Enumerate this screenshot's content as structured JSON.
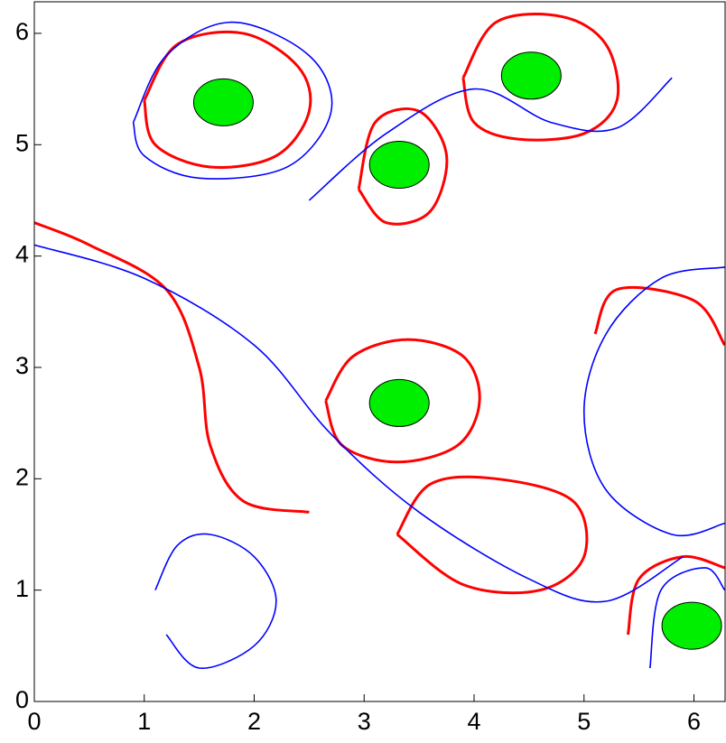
{
  "chart_data": {
    "type": "line",
    "xlim": [
      0,
      6.2832
    ],
    "ylim": [
      0,
      6.2832
    ],
    "xticks": [
      0,
      1,
      2,
      3,
      4,
      5,
      6
    ],
    "yticks": [
      0,
      1,
      2,
      3,
      4,
      5,
      6
    ],
    "series": [
      {
        "color": "#ff0000",
        "x": [
          2.65,
          2.9,
          3.4,
          3.9,
          4.05,
          3.85,
          3.3,
          2.8,
          2.65
        ],
        "values": [
          2.7,
          3.1,
          3.25,
          3.1,
          2.7,
          2.3,
          2.15,
          2.3,
          2.7
        ]
      },
      {
        "color": "#ff0000",
        "x": [
          1.0,
          1.3,
          1.9,
          2.4,
          2.5,
          2.2,
          1.6,
          1.1,
          1.0
        ],
        "values": [
          5.4,
          5.9,
          6.0,
          5.7,
          5.3,
          4.9,
          4.8,
          5.0,
          5.4
        ]
      },
      {
        "color": "#ff0000",
        "x": [
          3.9,
          4.2,
          4.8,
          5.2,
          5.3,
          5.0,
          4.4,
          4.0,
          3.9
        ],
        "values": [
          5.6,
          6.1,
          6.15,
          5.9,
          5.4,
          5.1,
          5.05,
          5.2,
          5.6
        ]
      },
      {
        "color": "#ff0000",
        "x": [
          2.95,
          3.1,
          3.5,
          3.75,
          3.6,
          3.2,
          2.95
        ],
        "values": [
          4.6,
          5.2,
          5.3,
          4.9,
          4.4,
          4.3,
          4.6
        ]
      },
      {
        "color": "#ff0000",
        "x": [
          3.3,
          3.6,
          4.2,
          4.9,
          5.0,
          4.6,
          3.9,
          3.3
        ],
        "values": [
          1.5,
          1.95,
          2.0,
          1.8,
          1.3,
          1.0,
          1.05,
          1.5
        ]
      },
      {
        "color": "#ff0000",
        "x": [
          0,
          0.5,
          1.2,
          1.5,
          1.6,
          1.9,
          2.5
        ],
        "values": [
          4.3,
          4.1,
          3.7,
          3.0,
          2.3,
          1.8,
          1.7
        ]
      },
      {
        "color": "#ff0000",
        "x": [
          5.1,
          5.3,
          6.0,
          6.28
        ],
        "values": [
          3.3,
          3.7,
          3.6,
          3.2
        ]
      },
      {
        "color": "#ff0000",
        "x": [
          5.4,
          5.5,
          5.9,
          6.28
        ],
        "values": [
          0.6,
          1.1,
          1.3,
          1.2
        ]
      },
      {
        "color": "#0000ff",
        "x": [
          6.28,
          5.7,
          5.2,
          5.0,
          5.2,
          5.8,
          6.28
        ],
        "values": [
          3.9,
          3.8,
          3.3,
          2.6,
          1.9,
          1.5,
          1.6
        ]
      },
      {
        "color": "#0000ff",
        "x": [
          0,
          1,
          2,
          2.7,
          3.5,
          4.5,
          5.2,
          5.9
        ],
        "values": [
          4.1,
          3.8,
          3.2,
          2.4,
          1.7,
          1.1,
          0.9,
          1.3
        ]
      },
      {
        "color": "#0000ff",
        "x": [
          2.5,
          3.2,
          4.0,
          4.7,
          5.3,
          5.8
        ],
        "values": [
          4.5,
          5.1,
          5.5,
          5.2,
          5.15,
          5.6
        ]
      },
      {
        "color": "#0000ff",
        "x": [
          0.9,
          1.2,
          1.8,
          2.5,
          2.7,
          2.3,
          1.5,
          1.0,
          0.9
        ],
        "values": [
          5.2,
          5.8,
          6.1,
          5.8,
          5.3,
          4.8,
          4.7,
          4.9,
          5.2
        ]
      },
      {
        "color": "#0000ff",
        "x": [
          1.1,
          1.3,
          1.6,
          2.0,
          2.2,
          2.0,
          1.5,
          1.2
        ],
        "values": [
          1.0,
          1.4,
          1.5,
          1.3,
          0.9,
          0.5,
          0.3,
          0.6
        ]
      },
      {
        "color": "#0000ff",
        "x": [
          5.6,
          5.7,
          6.1,
          6.28
        ],
        "values": [
          0.3,
          1.0,
          1.2,
          1.0
        ]
      }
    ],
    "markers": {
      "color": "#00ee00",
      "x": [
        1.72,
        4.52,
        3.32,
        3.32,
        5.98
      ],
      "values": [
        5.38,
        5.62,
        4.82,
        2.68,
        0.68
      ]
    }
  }
}
